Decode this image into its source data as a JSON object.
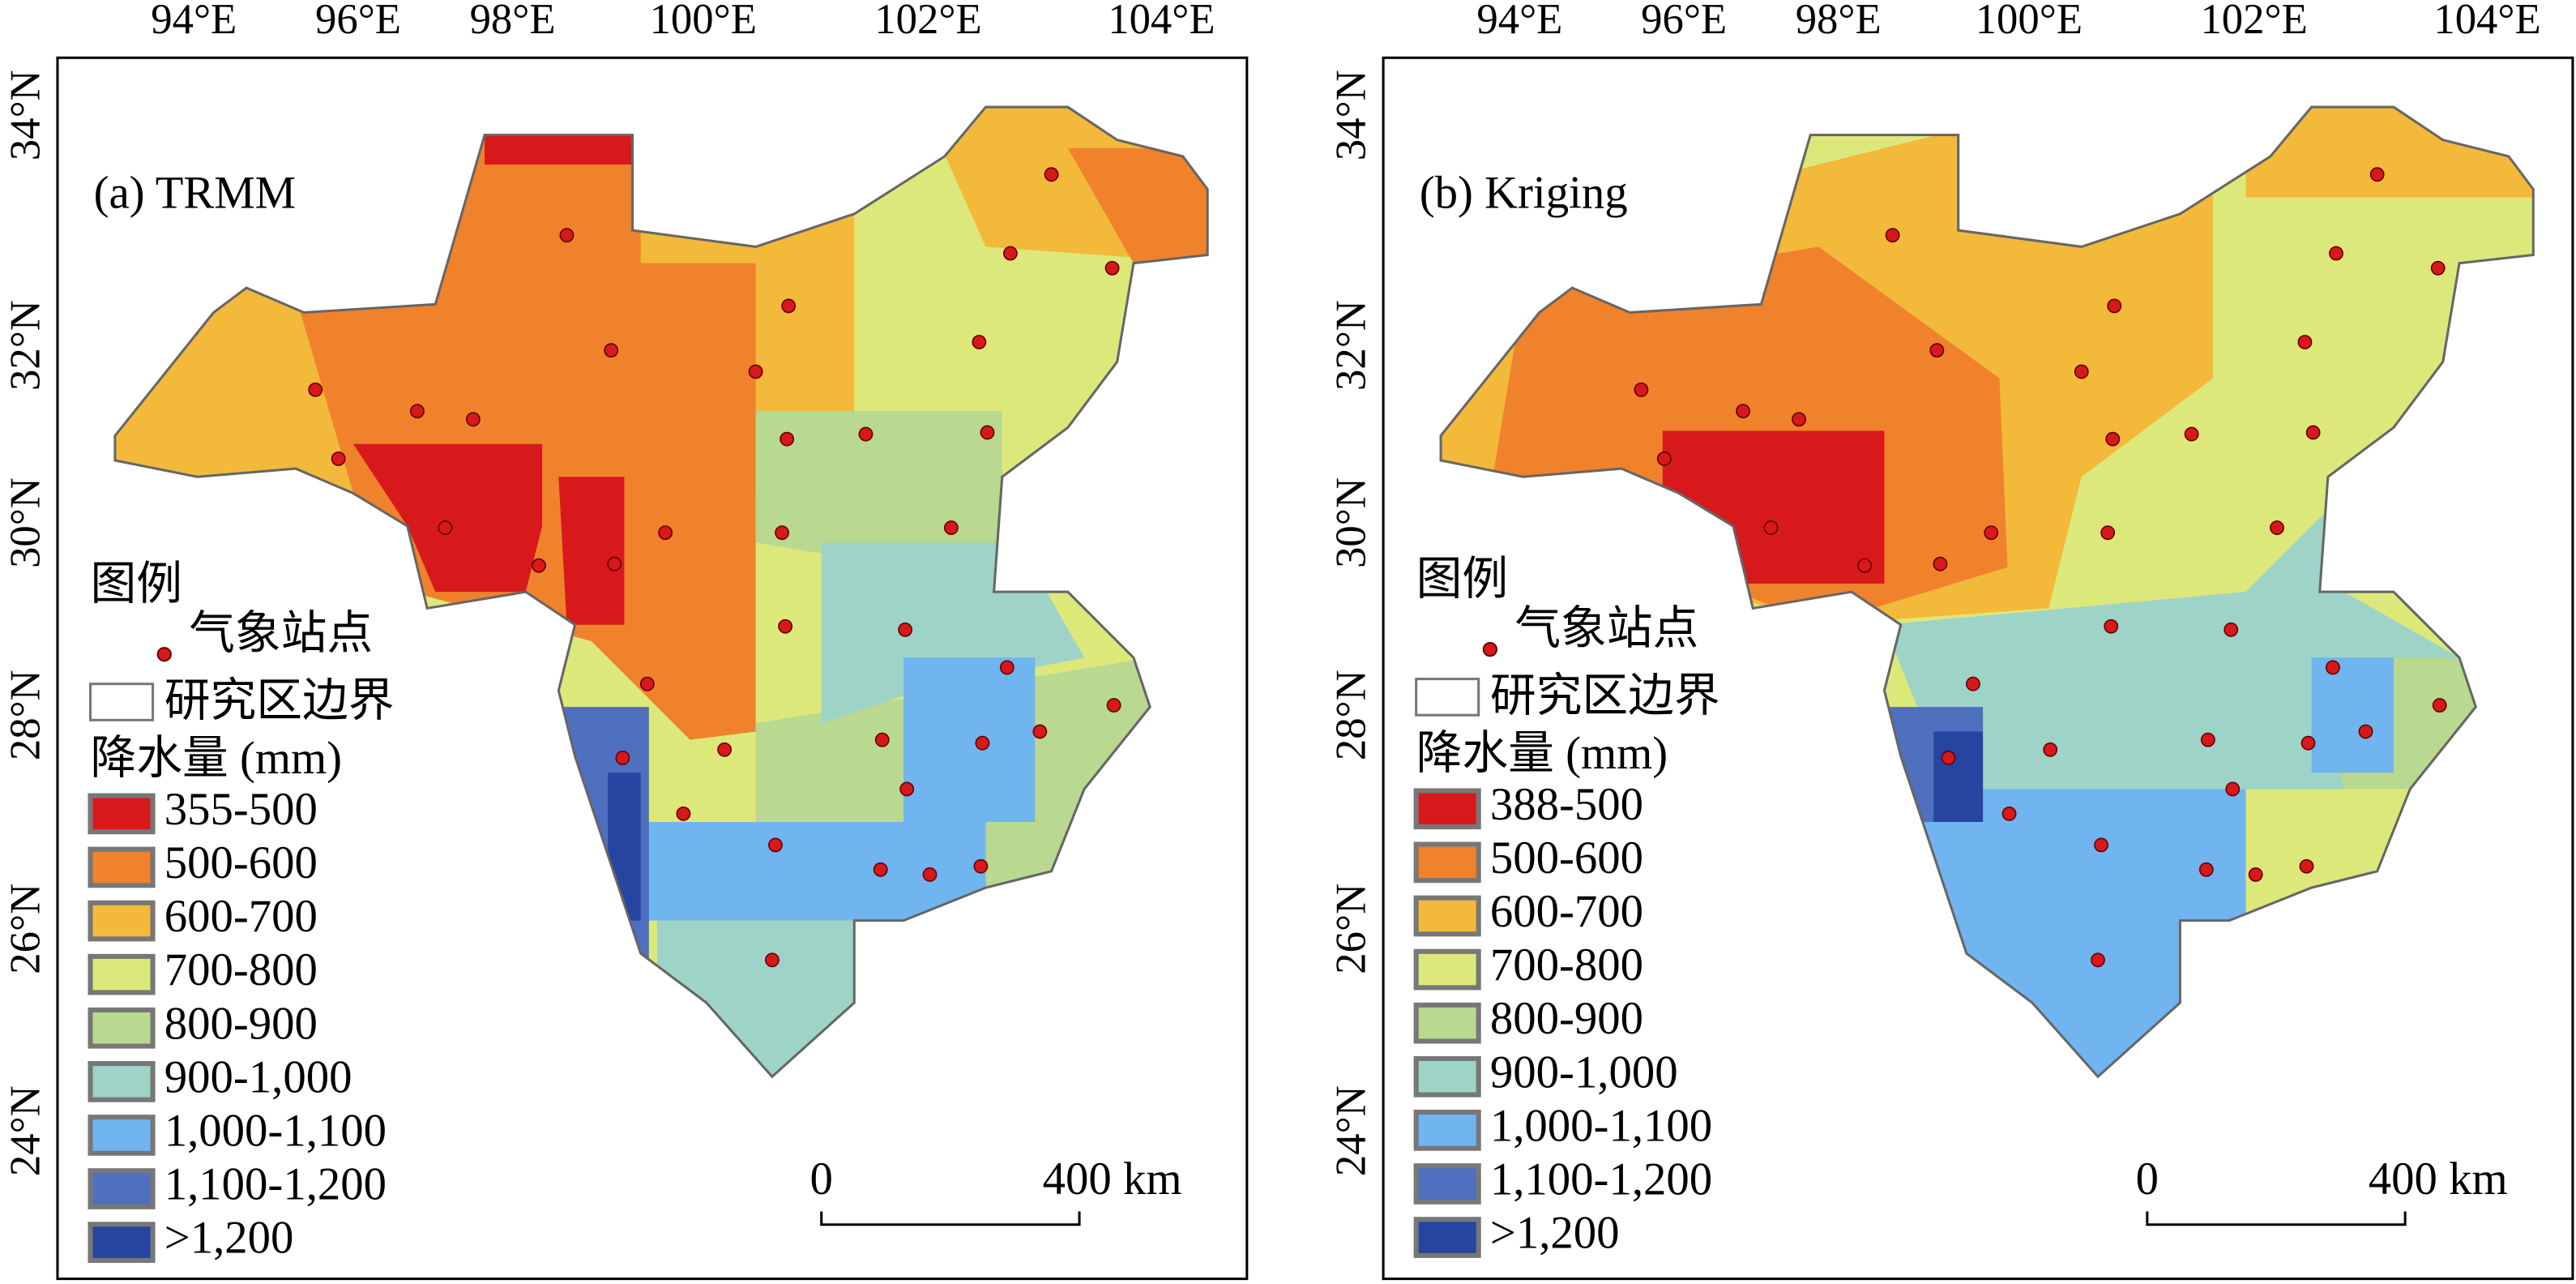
{
  "lon_labels": [
    "94°E",
    "96°E",
    "98°E",
    "100°E",
    "102°E",
    "104°E"
  ],
  "lat_labels": [
    "34°N",
    "32°N",
    "30°N",
    "28°N",
    "26°N",
    "24°N"
  ],
  "panels": [
    {
      "title": "(a) TRMM",
      "legend": {
        "title": "图例",
        "station": "气象站点",
        "boundary": "研究区边界",
        "precip_title": "降水量 (mm)",
        "classes": [
          {
            "label": "355-500",
            "color": "#d7191c"
          },
          {
            "label": "500-600",
            "color": "#f0822c"
          },
          {
            "label": "600-700",
            "color": "#f2b93b"
          },
          {
            "label": "700-800",
            "color": "#dde87a"
          },
          {
            "label": "800-900",
            "color": "#b8d98f"
          },
          {
            "label": "900-1,000",
            "color": "#9ed3c8"
          },
          {
            "label": "1,000-1,100",
            "color": "#70b4f0"
          },
          {
            "label": "1,100-1,200",
            "color": "#4f6fbf"
          },
          {
            "label": ">1,200",
            "color": "#2545a0"
          }
        ]
      },
      "scale": {
        "start": "0",
        "end": "400 km"
      }
    },
    {
      "title": "(b) Kriging",
      "legend": {
        "title": "图例",
        "station": "气象站点",
        "boundary": "研究区边界",
        "precip_title": "降水量 (mm)",
        "classes": [
          {
            "label": "388-500",
            "color": "#d7191c"
          },
          {
            "label": "500-600",
            "color": "#f0822c"
          },
          {
            "label": "600-700",
            "color": "#f2b93b"
          },
          {
            "label": "700-800",
            "color": "#dde87a"
          },
          {
            "label": "800-900",
            "color": "#b8d98f"
          },
          {
            "label": "900-1,000",
            "color": "#9ed3c8"
          },
          {
            "label": "1,000-1,100",
            "color": "#70b4f0"
          },
          {
            "label": "1,100-1,200",
            "color": "#4f6fbf"
          },
          {
            "label": ">1,200",
            "color": "#2545a0"
          }
        ]
      },
      "scale": {
        "start": "0",
        "end": "400 km"
      }
    }
  ]
}
